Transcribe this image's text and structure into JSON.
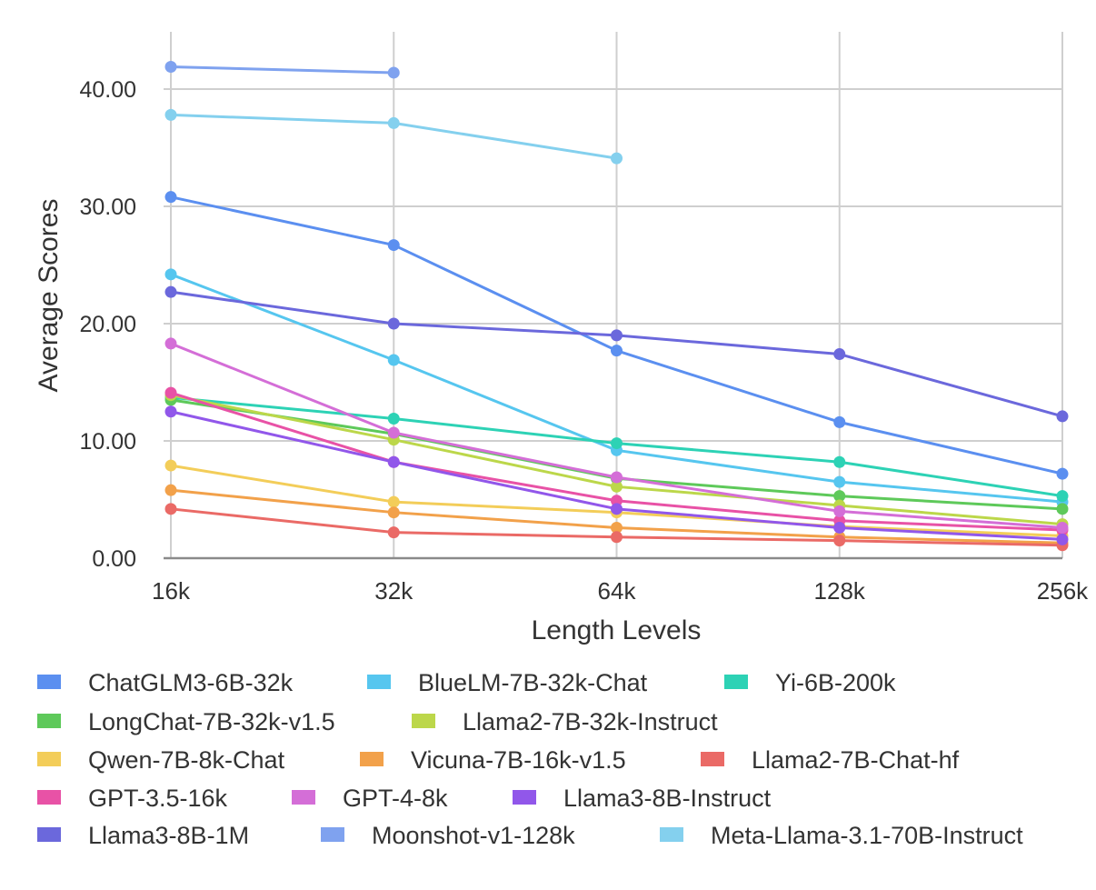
{
  "chart_data": {
    "type": "line",
    "title": "",
    "xlabel": "Length Levels",
    "ylabel": "Average Scores",
    "categories": [
      "16k",
      "32k",
      "64k",
      "128k",
      "256k"
    ],
    "ylim": [
      0,
      45
    ],
    "yticks": [
      0,
      10,
      20,
      30,
      40
    ],
    "ytick_labels": [
      "0.00",
      "10.00",
      "20.00",
      "30.00",
      "40.00"
    ],
    "grid": true,
    "legend_position": "bottom",
    "series": [
      {
        "name": "ChatGLM3-6B-32k",
        "color": "#5b8ff0",
        "values": [
          30.8,
          26.7,
          17.7,
          11.6,
          7.2
        ]
      },
      {
        "name": "BlueLM-7B-32k-Chat",
        "color": "#56c6ef",
        "values": [
          24.2,
          16.9,
          9.2,
          6.5,
          4.8
        ]
      },
      {
        "name": "Yi-6B-200k",
        "color": "#2dd2b5",
        "values": [
          13.7,
          11.9,
          9.8,
          8.2,
          5.3
        ]
      },
      {
        "name": "LongChat-7B-32k-v1.5",
        "color": "#5ec95a",
        "values": [
          13.5,
          10.6,
          6.8,
          5.3,
          4.2
        ]
      },
      {
        "name": "Llama2-7B-32k-Instruct",
        "color": "#bcd74a",
        "values": [
          13.9,
          10.1,
          6.1,
          4.5,
          2.9
        ]
      },
      {
        "name": "Qwen-7B-8k-Chat",
        "color": "#f3cd59",
        "values": [
          7.9,
          4.8,
          3.9,
          2.7,
          1.9
        ]
      },
      {
        "name": "Vicuna-7B-16k-v1.5",
        "color": "#f2a14a",
        "values": [
          5.8,
          3.9,
          2.6,
          1.8,
          1.3
        ]
      },
      {
        "name": "Llama2-7B-Chat-hf",
        "color": "#ea6a66",
        "values": [
          4.2,
          2.2,
          1.8,
          1.5,
          1.1
        ]
      },
      {
        "name": "GPT-3.5-16k",
        "color": "#e852a6",
        "values": [
          14.1,
          8.2,
          4.9,
          3.2,
          2.4
        ]
      },
      {
        "name": "GPT-4-8k",
        "color": "#d46ed7",
        "values": [
          18.3,
          10.7,
          6.9,
          4.0,
          2.6
        ]
      },
      {
        "name": "Llama3-8B-Instruct",
        "color": "#9157ea",
        "values": [
          12.5,
          8.2,
          4.2,
          2.6,
          1.6
        ]
      },
      {
        "name": "Llama3-8B-1M",
        "color": "#6b68dc",
        "values": [
          22.7,
          20.0,
          19.0,
          17.4,
          12.1
        ]
      },
      {
        "name": "Moonshot-v1-128k",
        "color": "#7fa2ef",
        "values": [
          41.9,
          41.4,
          null,
          null,
          null
        ]
      },
      {
        "name": "Meta-Llama-3.1-70B-Instruct",
        "color": "#84d0ee",
        "values": [
          37.8,
          37.1,
          34.1,
          null,
          null
        ]
      }
    ]
  }
}
